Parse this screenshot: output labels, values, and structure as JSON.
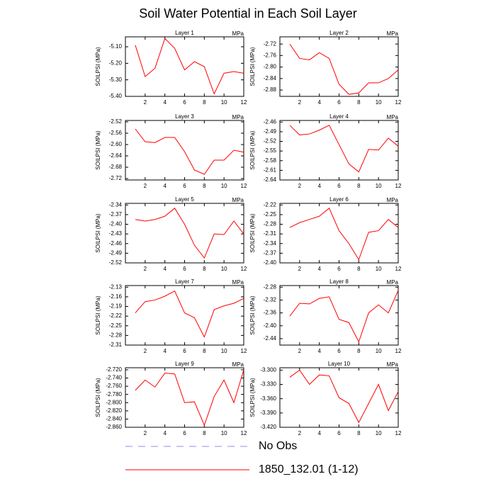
{
  "title": "Soil Water Potential in Each Soil Layer",
  "legend": [
    {
      "name": "No Obs",
      "color": "#8c8cf0",
      "dash": true
    },
    {
      "name": "1850_132.01 (1-12)",
      "color": "#ff0000"
    }
  ],
  "chart_data": [
    {
      "type": "line",
      "title": "Layer 1",
      "units": "MPa",
      "ylabel": "SOILPSI  (MPa)",
      "x": [
        1,
        2,
        3,
        4,
        5,
        6,
        7,
        8,
        9,
        10,
        11,
        12
      ],
      "xlim": [
        0,
        12
      ],
      "xticks": [
        2,
        4,
        6,
        8,
        10,
        12
      ],
      "ylim": [
        -5.4,
        -5.04
      ],
      "yticks": [
        {
          "value": -5.1,
          "label": "-5.10"
        },
        {
          "value": -5.2,
          "label": "-5.20"
        },
        {
          "value": -5.3,
          "label": "-5.30"
        },
        {
          "value": -5.4,
          "label": "-5.40"
        }
      ],
      "series": [
        {
          "color": "#ff0000",
          "values": [
            -5.09,
            -5.28,
            -5.23,
            -5.05,
            -5.11,
            -5.24,
            -5.19,
            -5.22,
            -5.385,
            -5.26,
            -5.25,
            -5.26
          ]
        }
      ]
    },
    {
      "type": "line",
      "title": "Layer 2",
      "units": "MPa",
      "ylabel": "SOILPSI  (MPa)",
      "x": [
        1,
        2,
        3,
        4,
        5,
        6,
        7,
        8,
        9,
        10,
        11,
        12
      ],
      "xlim": [
        0,
        12
      ],
      "xticks": [
        2,
        4,
        6,
        8,
        10,
        12
      ],
      "ylim": [
        -2.902,
        -2.695
      ],
      "yticks": [
        -2.72,
        -2.76,
        {
          "value": -2.8,
          "label": "-2.80"
        },
        -2.84,
        -2.88
      ],
      "series": [
        {
          "color": "#ff0000",
          "values": [
            -2.72,
            -2.77,
            -2.775,
            -2.75,
            -2.77,
            -2.86,
            -2.895,
            -2.89,
            -2.855,
            -2.855,
            -2.84,
            -2.81
          ]
        }
      ]
    },
    {
      "type": "line",
      "title": "Layer 3",
      "units": "MPa",
      "ylabel": "SOILPSI  (MPa)",
      "x": [
        1,
        2,
        3,
        4,
        5,
        6,
        7,
        8,
        9,
        10,
        11,
        12
      ],
      "xlim": [
        0,
        12
      ],
      "xticks": [
        2,
        4,
        6,
        8,
        10,
        12
      ],
      "ylim": [
        -2.725,
        -2.515
      ],
      "yticks": [
        -2.52,
        -2.56,
        {
          "value": -2.6,
          "label": "-2.60"
        },
        -2.64,
        -2.68,
        -2.72
      ],
      "series": [
        {
          "color": "#ff0000",
          "values": [
            -2.545,
            -2.59,
            -2.593,
            -2.575,
            -2.575,
            -2.625,
            -2.69,
            -2.705,
            -2.655,
            -2.655,
            -2.62,
            -2.627
          ]
        }
      ]
    },
    {
      "type": "line",
      "title": "Layer 4",
      "units": "MPa",
      "ylabel": "SOILPSI  (MPa)",
      "x": [
        1,
        2,
        3,
        4,
        5,
        6,
        7,
        8,
        9,
        10,
        11,
        12
      ],
      "xlim": [
        0,
        12
      ],
      "xticks": [
        2,
        4,
        6,
        8,
        10,
        12
      ],
      "ylim": [
        -2.64,
        -2.455
      ],
      "yticks": [
        -2.46,
        -2.49,
        -2.52,
        -2.55,
        -2.58,
        -2.61,
        -2.64
      ],
      "series": [
        {
          "color": "#ff0000",
          "values": [
            -2.47,
            -2.5,
            -2.497,
            -2.485,
            -2.47,
            -2.53,
            -2.59,
            -2.615,
            -2.545,
            -2.547,
            -2.51,
            -2.535
          ]
        }
      ]
    },
    {
      "type": "line",
      "title": "Layer 5",
      "units": "MPa",
      "ylabel": "SOILPSI  (MPa)",
      "x": [
        1,
        2,
        3,
        4,
        5,
        6,
        7,
        8,
        9,
        10,
        11,
        12
      ],
      "xlim": [
        0,
        12
      ],
      "xticks": [
        2,
        4,
        6,
        8,
        10,
        12
      ],
      "ylim": [
        -2.52,
        -2.335
      ],
      "yticks": [
        -2.34,
        -2.37,
        {
          "value": -2.4,
          "label": "-2.40"
        },
        -2.43,
        -2.46,
        -2.49,
        -2.52
      ],
      "series": [
        {
          "color": "#ff0000",
          "values": [
            -2.385,
            -2.39,
            -2.385,
            -2.375,
            -2.35,
            -2.4,
            -2.465,
            -2.505,
            -2.43,
            -2.432,
            -2.39,
            -2.43
          ]
        }
      ]
    },
    {
      "type": "line",
      "title": "Layer 6",
      "units": "MPa",
      "ylabel": "SOILPSI  (MPa)",
      "x": [
        1,
        2,
        3,
        4,
        5,
        6,
        7,
        8,
        9,
        10,
        11,
        12
      ],
      "xlim": [
        0,
        12
      ],
      "xticks": [
        2,
        4,
        6,
        8,
        10,
        12
      ],
      "ylim": [
        -2.4,
        -2.215
      ],
      "yticks": [
        -2.22,
        -2.25,
        -2.28,
        -2.31,
        -2.34,
        -2.37,
        {
          "value": -2.4,
          "label": "-2.40"
        }
      ],
      "series": [
        {
          "color": "#ff0000",
          "values": [
            -2.29,
            -2.275,
            -2.265,
            -2.255,
            -2.23,
            -2.3,
            -2.34,
            -2.39,
            -2.305,
            -2.3,
            -2.265,
            -2.29
          ]
        }
      ]
    },
    {
      "type": "line",
      "title": "Layer 7",
      "units": "MPa",
      "ylabel": "SOILPSI  (MPa)",
      "x": [
        1,
        2,
        3,
        4,
        5,
        6,
        7,
        8,
        9,
        10,
        11,
        12
      ],
      "xlim": [
        0,
        12
      ],
      "xticks": [
        2,
        4,
        6,
        8,
        10,
        12
      ],
      "ylim": [
        -2.31,
        -2.125
      ],
      "yticks": [
        -2.13,
        -2.16,
        -2.19,
        -2.22,
        -2.25,
        -2.28,
        -2.31
      ],
      "series": [
        {
          "color": "#ff0000",
          "values": [
            -2.21,
            -2.175,
            -2.17,
            -2.158,
            -2.142,
            -2.21,
            -2.225,
            -2.285,
            -2.2,
            -2.188,
            -2.18,
            -2.165
          ]
        }
      ]
    },
    {
      "type": "line",
      "title": "Layer 8",
      "units": "MPa",
      "ylabel": "SOILPSI  (MPa)",
      "x": [
        1,
        2,
        3,
        4,
        5,
        6,
        7,
        8,
        9,
        10,
        11,
        12
      ],
      "xlim": [
        0,
        12
      ],
      "xticks": [
        2,
        4,
        6,
        8,
        10,
        12
      ],
      "ylim": [
        -2.46,
        -2.275
      ],
      "yticks": [
        -2.28,
        -2.32,
        -2.36,
        {
          "value": -2.4,
          "label": "-2.40"
        },
        -2.44
      ],
      "series": [
        {
          "color": "#ff0000",
          "values": [
            -2.37,
            -2.33,
            -2.332,
            -2.315,
            -2.31,
            -2.38,
            -2.39,
            -2.45,
            -2.36,
            -2.335,
            -2.36,
            -2.29
          ]
        }
      ]
    },
    {
      "type": "line",
      "title": "Layer 9",
      "units": "MPa",
      "ylabel": "SOILPSI  (MPa)",
      "x": [
        1,
        2,
        3,
        4,
        5,
        6,
        7,
        8,
        9,
        10,
        11,
        12
      ],
      "xlim": [
        0,
        12
      ],
      "xticks": [
        2,
        4,
        6,
        8,
        10,
        12
      ],
      "ylim": [
        -2.86,
        -2.715
      ],
      "yticks": [
        {
          "value": -2.72,
          "label": "-2.720"
        },
        {
          "value": -2.74,
          "label": "-2.740"
        },
        {
          "value": -2.76,
          "label": "-2.760"
        },
        {
          "value": -2.78,
          "label": "-2.780"
        },
        {
          "value": -2.8,
          "label": "-2.800"
        },
        {
          "value": -2.82,
          "label": "-2.820"
        },
        {
          "value": -2.84,
          "label": "-2.840"
        },
        {
          "value": -2.86,
          "label": "-2.860"
        }
      ],
      "series": [
        {
          "color": "#ff0000",
          "values": [
            -2.77,
            -2.745,
            -2.762,
            -2.728,
            -2.73,
            -2.8,
            -2.798,
            -2.855,
            -2.785,
            -2.745,
            -2.8,
            -2.72
          ]
        }
      ]
    },
    {
      "type": "line",
      "title": "Layer 10",
      "units": "MPa",
      "ylabel": "SOILPSI  (MPa)",
      "x": [
        1,
        2,
        3,
        4,
        5,
        6,
        7,
        8,
        9,
        10,
        11,
        12
      ],
      "xlim": [
        0,
        12
      ],
      "xticks": [
        2,
        4,
        6,
        8,
        10,
        12
      ],
      "ylim": [
        -3.42,
        -3.295
      ],
      "yticks": [
        {
          "value": -3.3,
          "label": "-3.300"
        },
        {
          "value": -3.33,
          "label": "-3.330"
        },
        {
          "value": -3.36,
          "label": "-3.360"
        },
        {
          "value": -3.39,
          "label": "-3.390"
        },
        {
          "value": -3.42,
          "label": "-3.420"
        }
      ],
      "series": [
        {
          "color": "#ff0000",
          "values": [
            -3.315,
            -3.3,
            -3.33,
            -3.31,
            -3.312,
            -3.358,
            -3.37,
            -3.41,
            -3.37,
            -3.33,
            -3.385,
            -3.345
          ]
        }
      ]
    }
  ]
}
